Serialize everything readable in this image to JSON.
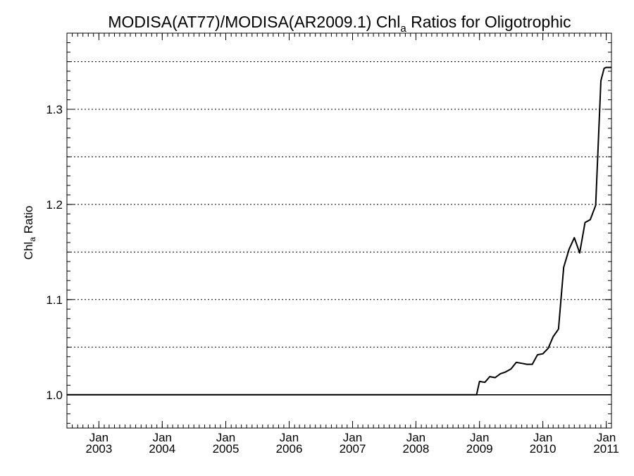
{
  "chart_data": {
    "type": "line",
    "title": {
      "prefix": "MODISA(AT77)/MODISA(AR2009.1)  Chl",
      "subscript": "a",
      "suffix": " Ratios for Oligotrophic"
    },
    "ylabel": {
      "main": "Chl",
      "subscript": "a",
      "suffix": " Ratio"
    },
    "ylim": [
      0.965,
      1.38
    ],
    "xlim": [
      "2002-07-01",
      "2011-01-31"
    ],
    "yticks": [
      {
        "value": 1.0,
        "label": "1.0"
      },
      {
        "value": 1.1,
        "label": "1.1"
      },
      {
        "value": 1.2,
        "label": "1.2"
      },
      {
        "value": 1.3,
        "label": "1.3"
      }
    ],
    "xticks": [
      {
        "date": "2003-01-01",
        "month": "Jan",
        "year": "2003"
      },
      {
        "date": "2004-01-01",
        "month": "Jan",
        "year": "2004"
      },
      {
        "date": "2005-01-01",
        "month": "Jan",
        "year": "2005"
      },
      {
        "date": "2006-01-01",
        "month": "Jan",
        "year": "2006"
      },
      {
        "date": "2007-01-01",
        "month": "Jan",
        "year": "2007"
      },
      {
        "date": "2008-01-01",
        "month": "Jan",
        "year": "2008"
      },
      {
        "date": "2009-01-01",
        "month": "Jan",
        "year": "2009"
      },
      {
        "date": "2010-01-01",
        "month": "Jan",
        "year": "2010"
      },
      {
        "date": "2011-01-01",
        "month": "Jan",
        "year": "2011"
      }
    ],
    "gridlines_y": [
      1.05,
      1.1,
      1.15,
      1.2,
      1.25,
      1.3,
      1.35
    ],
    "grid": "horizontal-dotted",
    "series": [
      {
        "x": [
          "2002-07-01",
          "2008-12-15",
          "2009-01-01",
          "2009-02-01",
          "2009-03-01",
          "2009-04-01",
          "2009-05-01",
          "2009-06-01",
          "2009-07-01",
          "2009-08-01",
          "2009-09-01",
          "2009-10-01",
          "2009-11-01",
          "2009-12-01",
          "2010-01-01",
          "2010-02-01",
          "2010-03-01",
          "2010-04-01",
          "2010-05-01",
          "2010-06-01",
          "2010-07-01",
          "2010-08-01",
          "2010-09-01",
          "2010-10-01",
          "2010-11-01",
          "2010-12-01",
          "2010-12-20",
          "2011-01-01",
          "2011-01-31"
        ],
        "y": [
          1.0,
          1.0,
          1.014,
          1.013,
          1.019,
          1.018,
          1.022,
          1.024,
          1.027,
          1.034,
          1.033,
          1.032,
          1.032,
          1.042,
          1.043,
          1.049,
          1.061,
          1.069,
          1.134,
          1.153,
          1.165,
          1.149,
          1.181,
          1.184,
          1.199,
          1.33,
          1.343,
          1.344,
          1.344
        ]
      }
    ],
    "reference_line": 1.0,
    "line_color": "#000000"
  }
}
